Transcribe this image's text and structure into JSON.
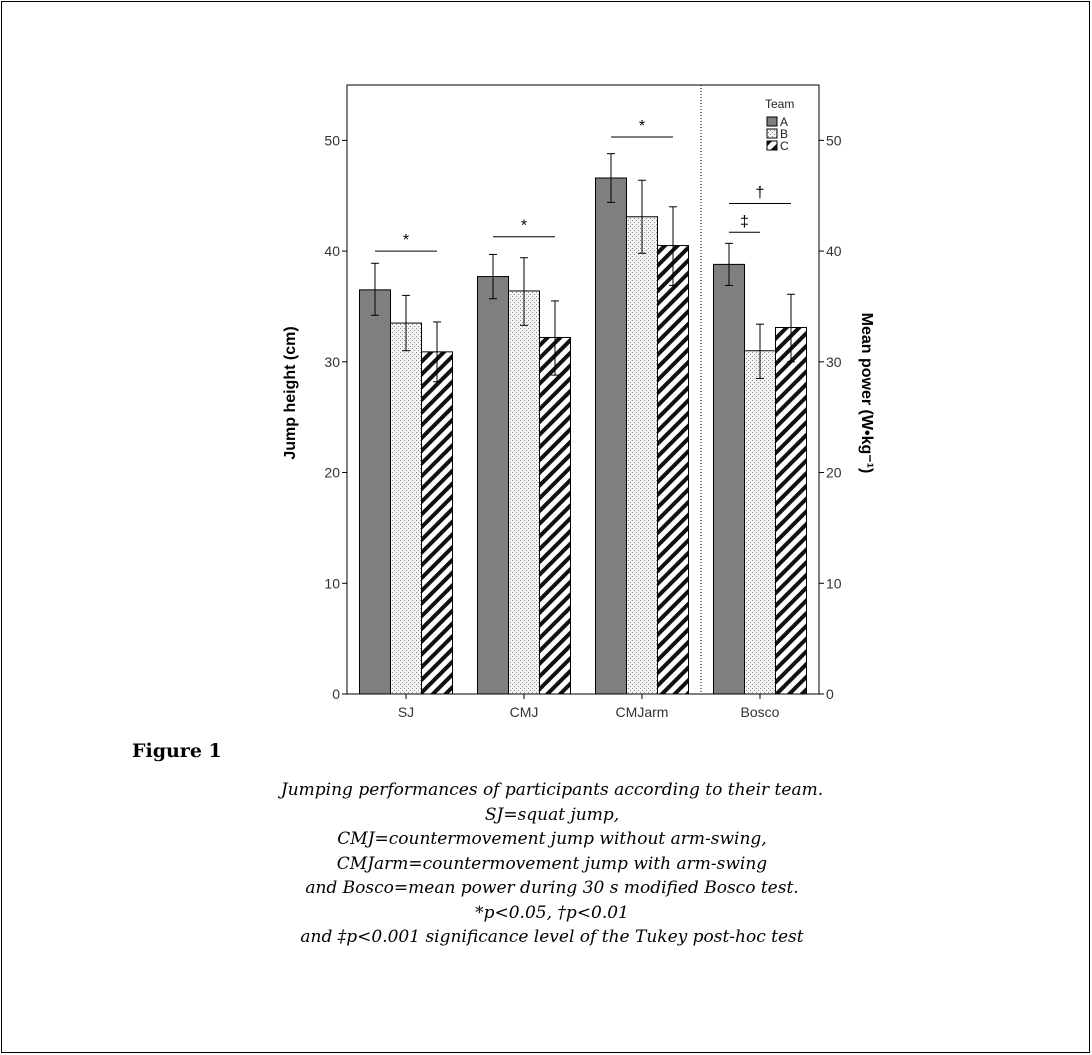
{
  "chart_data": {
    "type": "bar",
    "categories": [
      "SJ",
      "CMJ",
      "CMJarm",
      "Bosco"
    ],
    "ylabel": "Jump height (cm)",
    "y2label": "Mean power (W•kg⁻¹)",
    "ylim": [
      0,
      55
    ],
    "y2lim": [
      0,
      55
    ],
    "yticks": [
      0,
      10,
      20,
      30,
      40,
      50
    ],
    "legend": {
      "title": "Team",
      "position": "top-right"
    },
    "series": [
      {
        "name": "A",
        "fill": "solid-gray",
        "values": [
          36.5,
          37.7,
          46.6,
          38.8
        ],
        "error": [
          [
            34.2,
            38.9
          ],
          [
            35.7,
            39.7
          ],
          [
            44.4,
            48.8
          ],
          [
            36.9,
            40.7
          ]
        ]
      },
      {
        "name": "B",
        "fill": "dotted",
        "values": [
          33.5,
          36.4,
          43.1,
          31.0
        ],
        "error": [
          [
            31.0,
            36.0
          ],
          [
            33.3,
            39.4
          ],
          [
            39.8,
            46.4
          ],
          [
            28.5,
            33.4
          ]
        ]
      },
      {
        "name": "C",
        "fill": "hatched",
        "values": [
          30.9,
          32.2,
          40.5,
          33.1
        ],
        "error": [
          [
            28.2,
            33.6
          ],
          [
            28.8,
            35.5
          ],
          [
            36.9,
            44.0
          ],
          [
            30.0,
            36.1
          ]
        ]
      }
    ],
    "annotations": [
      {
        "category": "SJ",
        "symbol": "*",
        "level": 40.0,
        "from": "A",
        "to": "C"
      },
      {
        "category": "CMJ",
        "symbol": "*",
        "level": 41.3,
        "from": "A",
        "to": "C"
      },
      {
        "category": "CMJarm",
        "symbol": "*",
        "level": 50.3,
        "from": "A",
        "to": "C"
      },
      {
        "category": "Bosco",
        "symbol": "†",
        "level": 44.3,
        "from": "A",
        "to": "C"
      },
      {
        "category": "Bosco",
        "symbol": "‡",
        "level": 41.7,
        "from": "A",
        "to": "B"
      }
    ],
    "separator_after": "CMJarm",
    "colors": {
      "bar_fill": "#7f7f7f",
      "pattern_bg": "#f2f2f2",
      "ink": "#000000"
    }
  },
  "figure": {
    "label": "Figure 1",
    "caption_lines": [
      "Jumping performances of participants according to their team.",
      "SJ=squat jump,",
      "CMJ=countermovement jump without arm-swing,",
      "CMJarm=countermovement jump with arm-swing",
      "and Bosco=mean power during 30 s modified Bosco test.",
      "*p<0.05, †p<0.01",
      "and ‡p<0.001 significance level of the Tukey post-hoc test"
    ]
  }
}
